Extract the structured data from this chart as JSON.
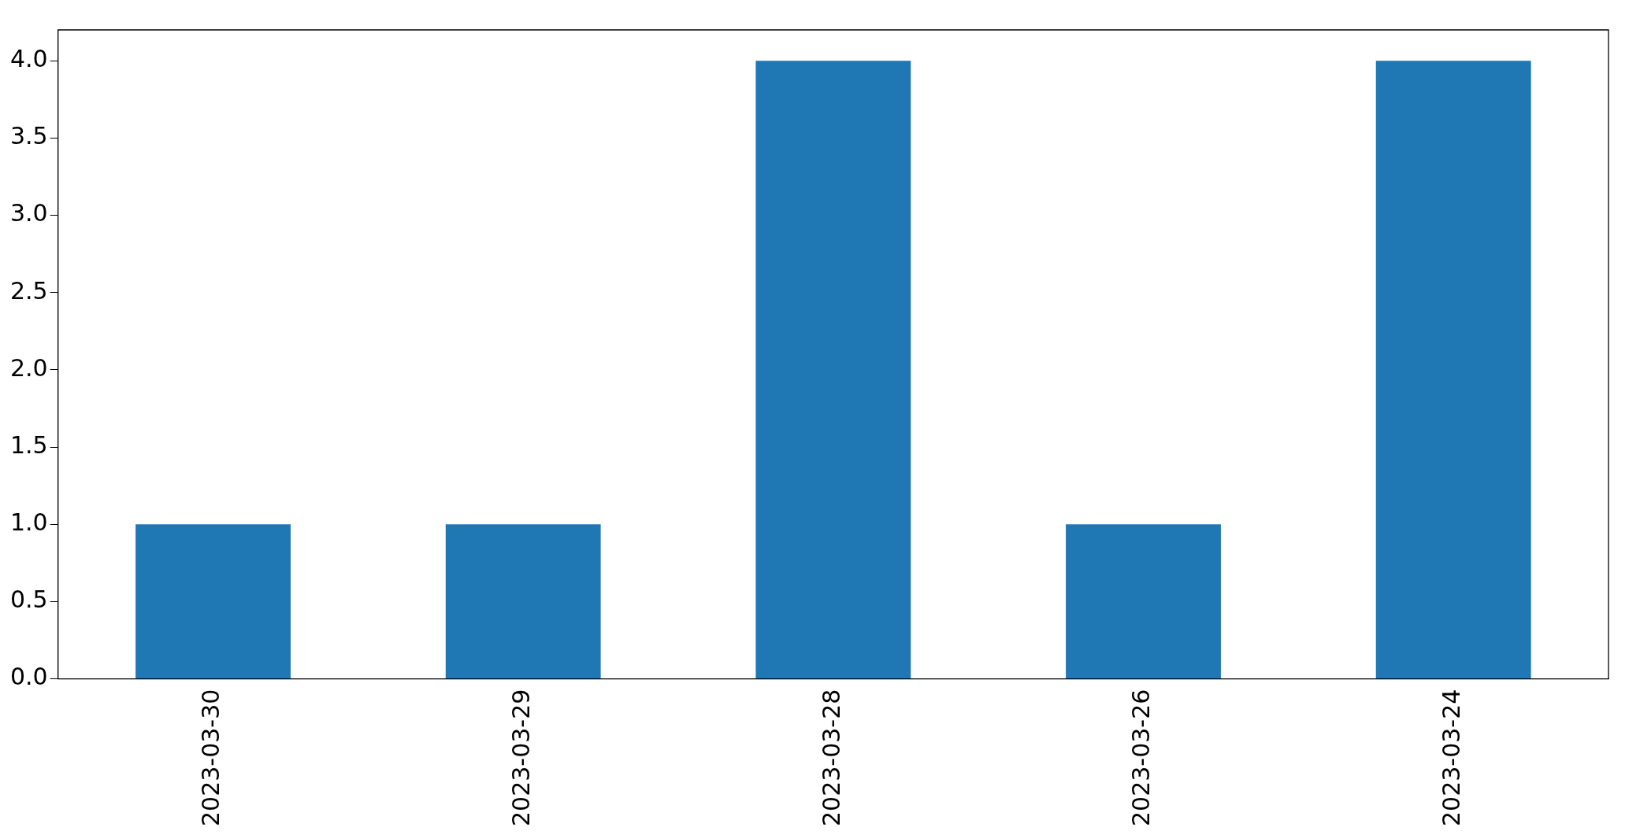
{
  "chart_data": {
    "type": "bar",
    "categories": [
      "2023-03-30",
      "2023-03-29",
      "2023-03-28",
      "2023-03-26",
      "2023-03-24"
    ],
    "values": [
      1,
      1,
      4,
      1,
      4
    ],
    "color": "#1f77b4",
    "ylim": [
      0,
      4.2
    ],
    "yticks": [
      {
        "value": 0,
        "label": "0.0"
      },
      {
        "value": 0.5,
        "label": "0.5"
      },
      {
        "value": 1,
        "label": "1.0"
      },
      {
        "value": 1.5,
        "label": "1.5"
      },
      {
        "value": 2,
        "label": "2.0"
      },
      {
        "value": 2.5,
        "label": "2.5"
      },
      {
        "value": 3,
        "label": "3.0"
      },
      {
        "value": 3.5,
        "label": "3.5"
      },
      {
        "value": 4,
        "label": "4.0"
      }
    ],
    "grid": false,
    "legend": false
  }
}
